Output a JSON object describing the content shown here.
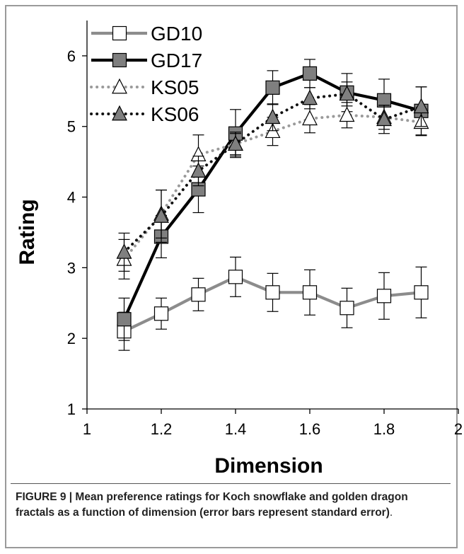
{
  "chart_data": {
    "type": "line",
    "title": "",
    "xlabel": "Dimension",
    "ylabel": "Rating",
    "xlim": [
      1,
      2
    ],
    "ylim": [
      1,
      6.5
    ],
    "xticks": [
      1,
      1.2,
      1.4,
      1.6,
      1.8,
      2
    ],
    "xtick_labels": [
      "1",
      "1.2",
      "1.4",
      "1.6",
      "1.8",
      "2"
    ],
    "yticks": [
      1,
      2,
      3,
      4,
      5,
      6
    ],
    "ytick_labels": [
      "1",
      "2",
      "3",
      "4",
      "5",
      "6"
    ],
    "grid": false,
    "legend_position": "top-left",
    "x": [
      1.1,
      1.2,
      1.3,
      1.4,
      1.5,
      1.6,
      1.7,
      1.8,
      1.9
    ],
    "series": [
      {
        "name": "GD10",
        "marker": "square",
        "line": "solid",
        "line_color": "#8c8c8c",
        "fill_color": "#ffffff",
        "values": [
          2.1,
          2.35,
          2.62,
          2.87,
          2.65,
          2.65,
          2.43,
          2.6,
          2.65
        ],
        "errors": [
          0.27,
          0.22,
          0.23,
          0.28,
          0.27,
          0.32,
          0.28,
          0.33,
          0.36
        ]
      },
      {
        "name": "GD17",
        "marker": "square",
        "line": "solid",
        "line_color": "#000000",
        "fill_color": "#7f7f7f",
        "values": [
          2.27,
          3.44,
          4.11,
          4.9,
          5.55,
          5.75,
          5.48,
          5.37,
          5.22
        ],
        "errors": [
          0.3,
          0.3,
          0.33,
          0.34,
          0.24,
          0.2,
          0.27,
          0.3,
          0.34
        ]
      },
      {
        "name": "KS05",
        "marker": "triangle",
        "line": "dotted",
        "line_color": "#9a9a9a",
        "fill_color": "#ffffff",
        "values": [
          3.12,
          3.76,
          4.6,
          4.75,
          4.93,
          5.11,
          5.16,
          5.13,
          5.06
        ],
        "errors": [
          0.28,
          0.34,
          0.28,
          0.17,
          0.2,
          0.2,
          0.18,
          0.17,
          0.19
        ]
      },
      {
        "name": "KS06",
        "marker": "triangle",
        "line": "dotted",
        "line_color": "#111111",
        "fill_color": "#7f7f7f",
        "values": [
          3.22,
          3.73,
          4.37,
          4.75,
          5.13,
          5.4,
          5.46,
          5.1,
          5.28
        ],
        "errors": [
          0.27,
          0.37,
          0.21,
          0.15,
          0.19,
          0.15,
          0.17,
          0.2,
          0.28
        ]
      }
    ]
  },
  "caption": {
    "label": "FIGURE 9 | Mean preference ratings for Koch snowflake and golden dragon fractals as a function of dimension (error bars represent standard error)",
    "end": "."
  }
}
